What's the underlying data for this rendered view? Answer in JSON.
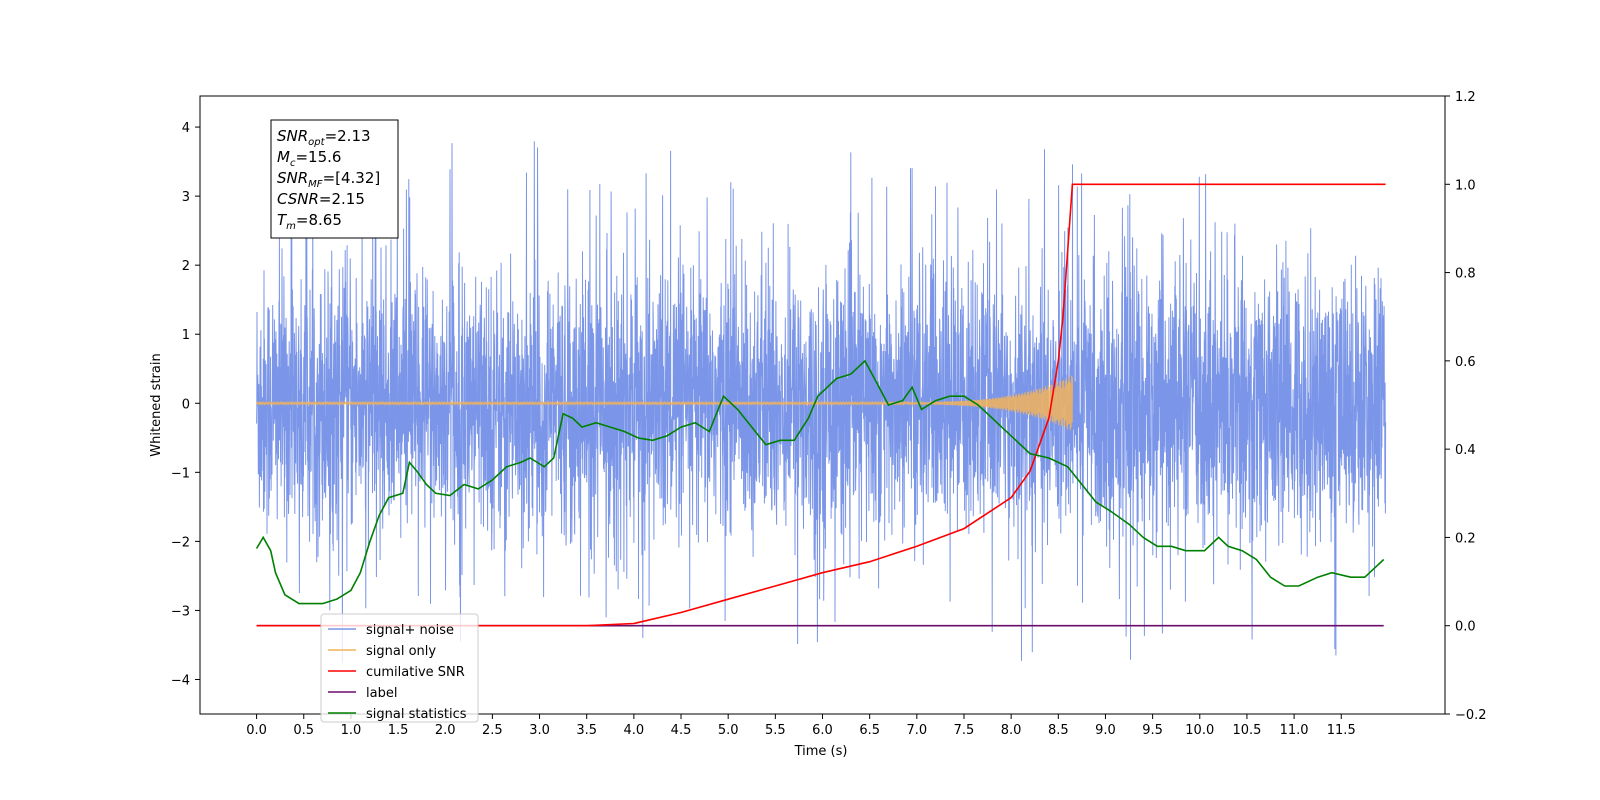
{
  "chart_data": {
    "type": "line",
    "xlabel": "Time (s)",
    "ylabel_left": "Whitened strain",
    "ylabel_right": "",
    "xlim": [
      -0.6,
      12.6
    ],
    "ylim_left": [
      -4.5,
      4.45
    ],
    "ylim_right": [
      -0.2,
      1.2
    ],
    "x_ticks": [
      "0.0",
      "0.5",
      "1.0",
      "1.5",
      "2.0",
      "2.5",
      "3.0",
      "3.5",
      "4.0",
      "4.5",
      "5.0",
      "5.5",
      "6.0",
      "6.5",
      "7.0",
      "7.5",
      "8.0",
      "8.5",
      "9.0",
      "9.5",
      "10.0",
      "10.5",
      "11.0",
      "11.5"
    ],
    "y_ticks_left": [
      "4",
      "3",
      "2",
      "1",
      "0",
      "−1",
      "−2",
      "−3",
      "−4"
    ],
    "y_ticks_right": [
      "1.2",
      "1.0",
      "0.8",
      "0.6",
      "0.4",
      "0.2",
      "0.0",
      "−0.2"
    ],
    "grid": false,
    "legend_position": "lower-left",
    "annotation": {
      "lines": [
        {
          "base": "SNR",
          "sub": "opt",
          "rest": "=2.13"
        },
        {
          "base": "M",
          "sub": "c",
          "rest": "=15.6"
        },
        {
          "base": "SNR",
          "sub": "MF",
          "rest": "=[4.32]"
        },
        {
          "base": "CSNR",
          "sub": "",
          "rest": "=2.15"
        },
        {
          "base": "T",
          "sub": "m",
          "rest": "=8.65"
        }
      ]
    },
    "series": [
      {
        "name": "signal+ noise",
        "axis": "left",
        "color": "#7b96e8",
        "description_values": "dense noise, approx ±2.4 envelope with spikes to ~4.1 and ~-4.1",
        "x_range": [
          0.0,
          11.97
        ],
        "noise_std": 0.95,
        "peak_max": 4.07,
        "peak_min": -4.1
      },
      {
        "name": "signal only",
        "axis": "left",
        "color": "#f2b35a",
        "chirp_start": 6.3,
        "chirp_end": 8.65,
        "chirp_peak_amplitude": 0.4,
        "x_range": [
          0.0,
          8.65
        ]
      },
      {
        "name": "cumilative SNR",
        "axis": "right",
        "color": "#ff0000",
        "points": [
          [
            0.0,
            0.0
          ],
          [
            3.5,
            0.0
          ],
          [
            4.0,
            0.005
          ],
          [
            4.5,
            0.03
          ],
          [
            5.0,
            0.06
          ],
          [
            5.5,
            0.09
          ],
          [
            6.0,
            0.12
          ],
          [
            6.5,
            0.145
          ],
          [
            7.0,
            0.18
          ],
          [
            7.5,
            0.22
          ],
          [
            8.0,
            0.29
          ],
          [
            8.2,
            0.35
          ],
          [
            8.4,
            0.47
          ],
          [
            8.5,
            0.6
          ],
          [
            8.55,
            0.7
          ],
          [
            8.6,
            0.85
          ],
          [
            8.65,
            1.0
          ],
          [
            11.97,
            1.0
          ]
        ]
      },
      {
        "name": "label",
        "axis": "right",
        "color": "#6b0d6b",
        "points": [
          [
            0.0,
            0.0
          ],
          [
            11.95,
            0.0
          ]
        ]
      },
      {
        "name": "signal statistics",
        "axis": "right",
        "color": "#008000",
        "points": [
          [
            0.0,
            0.175
          ],
          [
            0.07,
            0.2
          ],
          [
            0.15,
            0.17
          ],
          [
            0.2,
            0.12
          ],
          [
            0.3,
            0.07
          ],
          [
            0.45,
            0.05
          ],
          [
            0.55,
            0.05
          ],
          [
            0.7,
            0.05
          ],
          [
            0.85,
            0.06
          ],
          [
            1.0,
            0.08
          ],
          [
            1.1,
            0.12
          ],
          [
            1.2,
            0.19
          ],
          [
            1.3,
            0.25
          ],
          [
            1.4,
            0.29
          ],
          [
            1.55,
            0.3
          ],
          [
            1.62,
            0.37
          ],
          [
            1.7,
            0.35
          ],
          [
            1.8,
            0.32
          ],
          [
            1.9,
            0.3
          ],
          [
            2.05,
            0.295
          ],
          [
            2.2,
            0.32
          ],
          [
            2.35,
            0.31
          ],
          [
            2.5,
            0.33
          ],
          [
            2.65,
            0.36
          ],
          [
            2.8,
            0.37
          ],
          [
            2.9,
            0.38
          ],
          [
            3.05,
            0.36
          ],
          [
            3.15,
            0.38
          ],
          [
            3.25,
            0.48
          ],
          [
            3.35,
            0.47
          ],
          [
            3.45,
            0.45
          ],
          [
            3.6,
            0.46
          ],
          [
            3.75,
            0.45
          ],
          [
            3.9,
            0.44
          ],
          [
            4.05,
            0.425
          ],
          [
            4.2,
            0.42
          ],
          [
            4.35,
            0.43
          ],
          [
            4.5,
            0.45
          ],
          [
            4.65,
            0.46
          ],
          [
            4.8,
            0.44
          ],
          [
            4.95,
            0.52
          ],
          [
            5.1,
            0.49
          ],
          [
            5.25,
            0.45
          ],
          [
            5.4,
            0.41
          ],
          [
            5.55,
            0.42
          ],
          [
            5.7,
            0.42
          ],
          [
            5.85,
            0.47
          ],
          [
            5.95,
            0.52
          ],
          [
            6.05,
            0.54
          ],
          [
            6.15,
            0.56
          ],
          [
            6.3,
            0.57
          ],
          [
            6.45,
            0.6
          ],
          [
            6.55,
            0.56
          ],
          [
            6.7,
            0.5
          ],
          [
            6.85,
            0.51
          ],
          [
            6.95,
            0.54
          ],
          [
            7.05,
            0.49
          ],
          [
            7.2,
            0.51
          ],
          [
            7.35,
            0.52
          ],
          [
            7.5,
            0.52
          ],
          [
            7.65,
            0.5
          ],
          [
            7.75,
            0.48
          ],
          [
            7.9,
            0.45
          ],
          [
            8.05,
            0.42
          ],
          [
            8.2,
            0.39
          ],
          [
            8.4,
            0.38
          ],
          [
            8.6,
            0.36
          ],
          [
            8.75,
            0.32
          ],
          [
            8.9,
            0.28
          ],
          [
            9.05,
            0.26
          ],
          [
            9.25,
            0.23
          ],
          [
            9.4,
            0.2
          ],
          [
            9.55,
            0.18
          ],
          [
            9.7,
            0.18
          ],
          [
            9.85,
            0.17
          ],
          [
            10.05,
            0.17
          ],
          [
            10.2,
            0.2
          ],
          [
            10.3,
            0.18
          ],
          [
            10.45,
            0.17
          ],
          [
            10.6,
            0.15
          ],
          [
            10.75,
            0.11
          ],
          [
            10.9,
            0.09
          ],
          [
            11.05,
            0.09
          ],
          [
            11.25,
            0.11
          ],
          [
            11.4,
            0.12
          ],
          [
            11.6,
            0.11
          ],
          [
            11.75,
            0.11
          ],
          [
            11.85,
            0.13
          ],
          [
            11.95,
            0.15
          ]
        ]
      }
    ]
  }
}
